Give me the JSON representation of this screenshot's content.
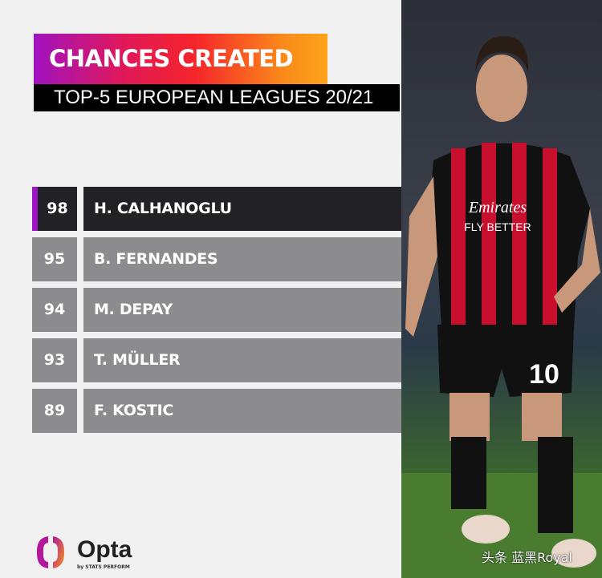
{
  "chart_data": {
    "type": "table",
    "title": "CHANCES CREATED",
    "subtitle": "TOP-5 EUROPEAN LEAGUES 20/21",
    "rows": [
      {
        "value": 98,
        "player": "H. CALHANOGLU",
        "highlight": true
      },
      {
        "value": 95,
        "player": "B. FERNANDES",
        "highlight": false
      },
      {
        "value": 94,
        "player": "M. DEPAY",
        "highlight": false
      },
      {
        "value": 93,
        "player": "T. MÜLLER",
        "highlight": false
      },
      {
        "value": 89,
        "player": "F. KOSTIC",
        "highlight": false
      }
    ]
  },
  "colors": {
    "highlight_row": "#222125",
    "other_row": "#8c8c8e",
    "accent": "#9d15c4"
  },
  "photo": {
    "shirt_sponsor": "Emirates",
    "shirt_tagline": "FLY BETTER",
    "shirt_number": "10"
  },
  "logo": {
    "brand": "Opta",
    "sub": "by STATS PERFORM"
  },
  "watermark": "头条 蓝黑Royal"
}
